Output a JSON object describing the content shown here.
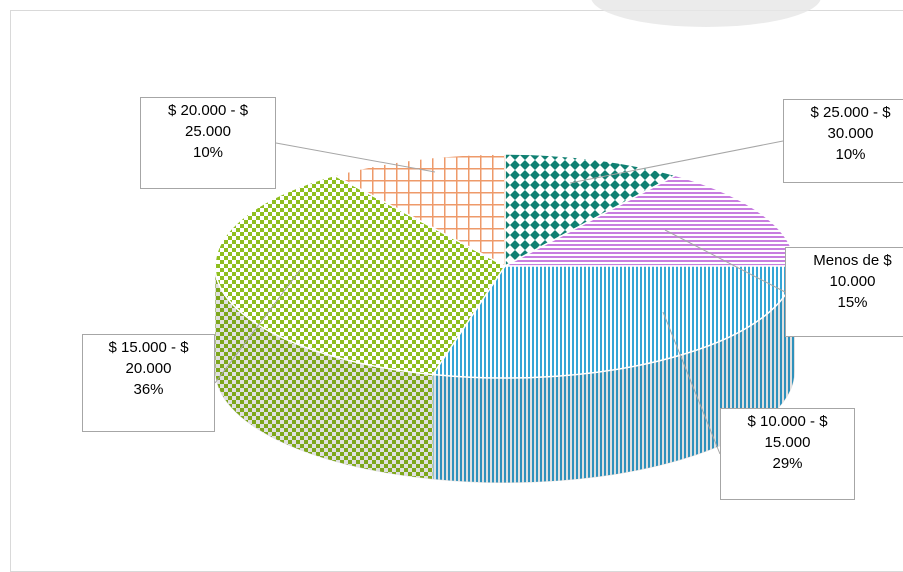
{
  "chart_data": {
    "type": "pie",
    "title": "",
    "slices": [
      {
        "line1": "$ 25.000 - $",
        "line2": "30.000",
        "pct_label": "10%",
        "value": 10,
        "color": "#0f8072"
      },
      {
        "line1": "Menos de $",
        "line2": "10.000",
        "pct_label": "15%",
        "value": 15,
        "color": "#c87ee0"
      },
      {
        "line1": "$ 10.000 - $",
        "line2": "15.000",
        "pct_label": "29%",
        "value": 29,
        "color": "#35a6d6"
      },
      {
        "line1": "$ 15.000 - $",
        "line2": "20.000",
        "pct_label": "36%",
        "value": 36,
        "color": "#8fbf1f"
      },
      {
        "line1": "$ 20.000 - $",
        "line2": "25.000",
        "pct_label": "10%",
        "value": 10,
        "color": "#ee9a6a"
      }
    ]
  }
}
